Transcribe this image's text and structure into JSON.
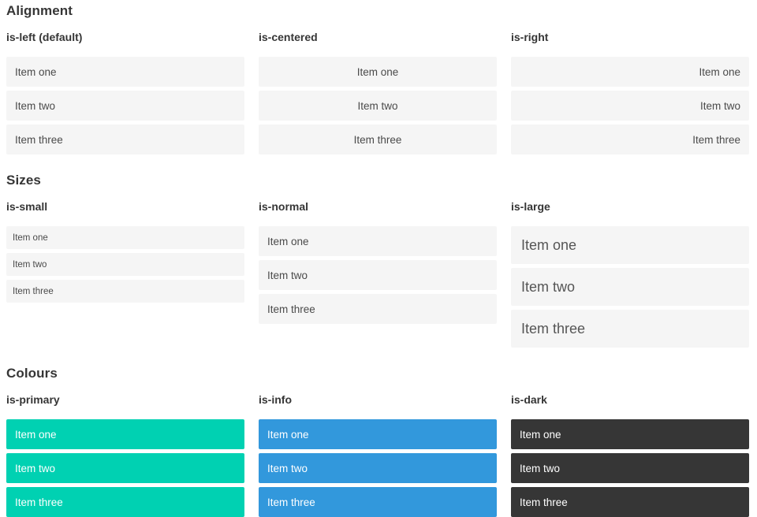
{
  "sections": [
    {
      "title": "Alignment",
      "demos": [
        {
          "label": "is-left (default)"
        },
        {
          "label": "is-centered"
        },
        {
          "label": "is-right"
        }
      ]
    },
    {
      "title": "Sizes",
      "demos": [
        {
          "label": "is-small"
        },
        {
          "label": "is-normal"
        },
        {
          "label": "is-large"
        }
      ]
    },
    {
      "title": "Colours",
      "demos": [
        {
          "label": "is-primary"
        },
        {
          "label": "is-info"
        },
        {
          "label": "is-dark"
        }
      ]
    }
  ],
  "list_items": [
    "Item one",
    "Item two",
    "Item three"
  ],
  "colors": {
    "primary": "#00d1b2",
    "info": "#3298dc",
    "dark": "#363636",
    "item_background": "#f5f5f5",
    "item_text": "#4a4a4a",
    "heading_text": "#363636",
    "colored_item_text": "#ffffff"
  }
}
